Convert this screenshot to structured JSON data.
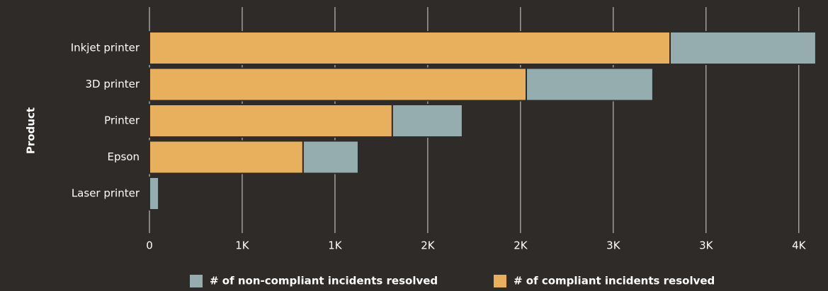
{
  "chart_data": {
    "type": "stacked_barh",
    "y_label": "Product",
    "categories": [
      "Inkjet printer",
      "3D printer",
      "Printer",
      "Epson",
      "Laser printer"
    ],
    "series": [
      {
        "name": "# of non-compliant incidents resolved",
        "color": "#95adae",
        "values": [
          786,
          683,
          378,
          298,
          50
        ]
      },
      {
        "name": "# of compliant incidents resolved",
        "color": "#e8b05c",
        "values": [
          2806,
          2031,
          1309,
          828,
          0
        ]
      }
    ],
    "xlim": [
      0,
      3600
    ],
    "xticks": [
      0,
      {
        "value": 500,
        "label": "1K"
      },
      {
        "value": 1000,
        "label": "1K"
      },
      {
        "value": 1500,
        "label": "2K"
      },
      {
        "value": 2000,
        "label": "2K"
      },
      {
        "value": 2500,
        "label": "3K"
      },
      {
        "value": 3000,
        "label": "3K"
      },
      {
        "value": 3500,
        "label": "4K"
      }
    ],
    "grid": true
  }
}
